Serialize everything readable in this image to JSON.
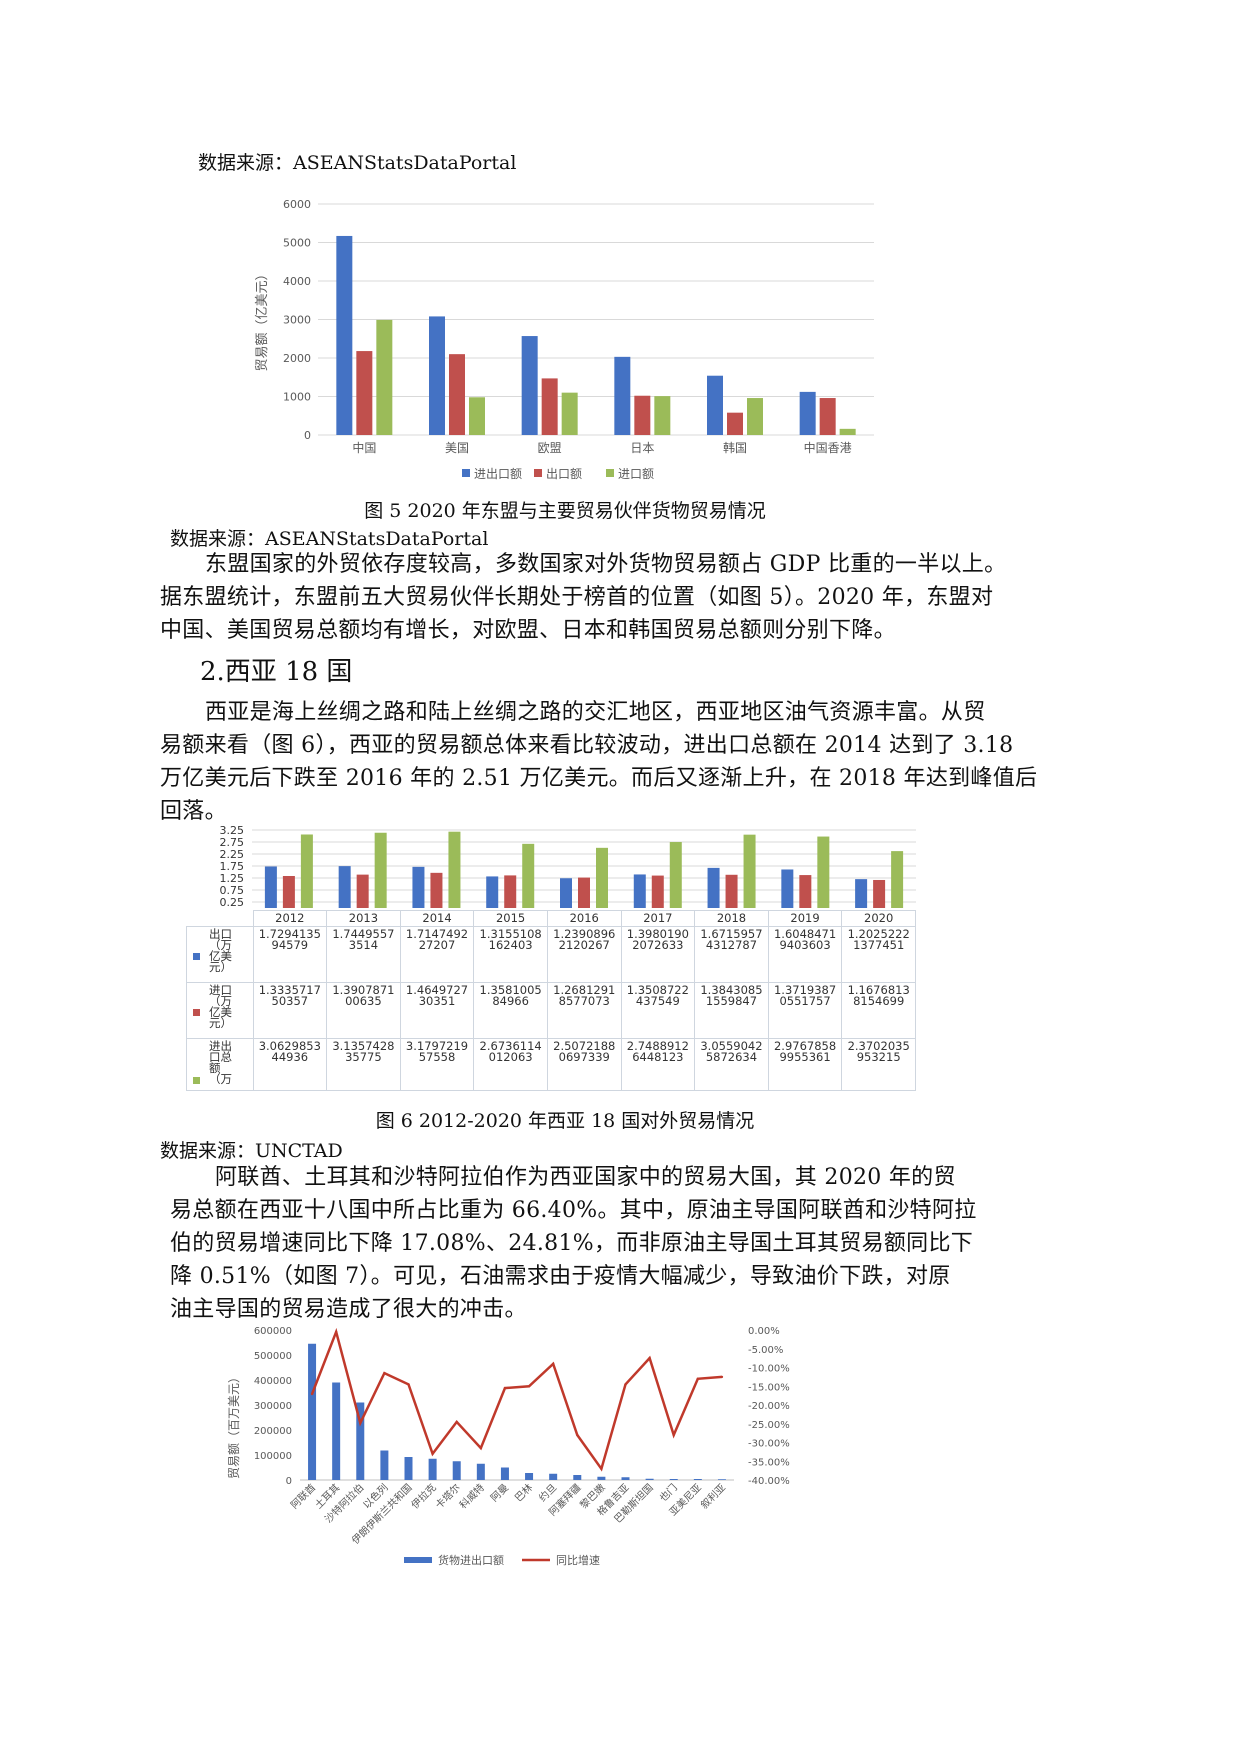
{
  "source1": "数据来源：ASEANStatsDataPortal",
  "chart5": {
    "type": "bar",
    "categories": [
      "中国",
      "美国",
      "欧盟",
      "日本",
      "韩国",
      "中国香港"
    ],
    "ylabel": "贸易额（亿美元）",
    "ylim": [
      0,
      6000
    ],
    "yticks": [
      "0",
      "1000",
      "2000",
      "3000",
      "4000",
      "5000",
      "6000"
    ],
    "legend_position": "bottom",
    "series": [
      {
        "name": "进出口额",
        "color": "#4472c4",
        "values": [
          5170,
          3080,
          2570,
          2030,
          1540,
          1120
        ]
      },
      {
        "name": "出口额",
        "color": "#c0504d",
        "values": [
          2180,
          2100,
          1470,
          1020,
          580,
          960
        ]
      },
      {
        "name": "进口额",
        "color": "#9bbb59",
        "values": [
          2990,
          980,
          1100,
          1010,
          960,
          160
        ]
      }
    ]
  },
  "caption5": "图 5 2020 年东盟与主要贸易伙伴货物贸易情况",
  "source2": "数据来源：ASEANStatsDataPortal",
  "para1": [
    "东盟国家的外贸依存度较高，多数国家对外货物贸易额占 GDP 比重的一半以上。",
    "据东盟统计，东盟前五大贸易伙伴长期处于榜首的位置（如图 5）。2020 年，东盟对",
    "中国、美国贸易总额均有增长，对欧盟、日本和韩国贸易总额则分别下降。"
  ],
  "heading": "2.西亚 18 国",
  "para2": [
    "西亚是海上丝绸之路和陆上丝绸之路的交汇地区，西亚地区油气资源丰富。从贸",
    "易额来看（图 6），西亚的贸易额总体来看比较波动，进出口总额在 2014 达到了 3.18",
    "万亿美元后下跌至 2016 年的 2.51 万亿美元。而后又逐渐上升，在 2018 年达到峰值后",
    "回落。"
  ],
  "chart6": {
    "type": "bar",
    "categories": [
      "2012",
      "2013",
      "2014",
      "2015",
      "2016",
      "2017",
      "2018",
      "2019",
      "2020"
    ],
    "ylim": [
      0,
      3.25
    ],
    "yticks": [
      "0.25",
      "0.75",
      "1.25",
      "1.75",
      "2.25",
      "2.75",
      "3.25"
    ],
    "series": [
      {
        "name": "出口（万亿美元）",
        "color": "#4472c4",
        "values": [
          1.729413594579,
          1.74495573514,
          1.7147492272,
          1.31551081624,
          1.23908962120267,
          1.39801902072633,
          1.67159574312787,
          1.60484719403603,
          1.20252221377451
        ],
        "label_lines": [
          "出口",
          "（万",
          "亿美",
          "元）"
        ],
        "texts": [
          [
            "1.7294135",
            "94579"
          ],
          [
            "1.7449557",
            "3514"
          ],
          [
            "1.7147492",
            "27207"
          ],
          [
            "1.3155108",
            "162403"
          ],
          [
            "1.2390896",
            "2120267"
          ],
          [
            "1.3980190",
            "2072633"
          ],
          [
            "1.6715957",
            "4312787"
          ],
          [
            "1.6048471",
            "9403603"
          ],
          [
            "1.2025222",
            "1377451"
          ]
        ]
      },
      {
        "name": "进口（万亿美元）",
        "color": "#c0504d",
        "values": [
          1.333571750357,
          1.390787100635,
          1.464972730351,
          1.358100584966,
          1.26812918577073,
          1.3508722437549,
          1.38430851559847,
          1.37193870551757,
          1.16768138154699
        ],
        "label_lines": [
          "进口",
          "（万",
          "亿美",
          "元）"
        ],
        "texts": [
          [
            "1.3335717",
            "50357"
          ],
          [
            "1.3907871",
            "00635"
          ],
          [
            "1.4649727",
            "30351"
          ],
          [
            "1.3581005",
            "84966"
          ],
          [
            "1.2681291",
            "8577073"
          ],
          [
            "1.3508722",
            "437549"
          ],
          [
            "1.3843085",
            "1559847"
          ],
          [
            "1.3719387",
            "0551757"
          ],
          [
            "1.1676813",
            "8154699"
          ]
        ]
      },
      {
        "name": "进出口总额（万亿美元）",
        "color": "#9bbb59",
        "values": [
          3.062985344936,
          3.135742835775,
          3.179721957558,
          2.6736114012063,
          2.50721880697339,
          2.74889126448123,
          3.05590425872634,
          2.97678589955361,
          2.3702035953215
        ],
        "label_lines": [
          "进出",
          "口总",
          "额",
          "（万"
        ],
        "texts": [
          [
            "3.0629853",
            "44936"
          ],
          [
            "3.1357428",
            "35775"
          ],
          [
            "3.1797219",
            "57558"
          ],
          [
            "2.6736114",
            "012063"
          ],
          [
            "2.5072188",
            "0697339"
          ],
          [
            "2.7488912",
            "6448123"
          ],
          [
            "3.0559042",
            "5872634"
          ],
          [
            "2.9767858",
            "9955361"
          ],
          [
            "2.3702035",
            "953215"
          ]
        ]
      }
    ]
  },
  "caption6": "图 6 2012-2020 年西亚 18 国对外贸易情况",
  "source3": "数据来源：UNCTAD",
  "para3": [
    "阿联酋、土耳其和沙特阿拉伯作为西亚国家中的贸易大国，其 2020 年的贸",
    "易总额在西亚十八国中所占比重为 66.40%。其中，原油主导国阿联酋和沙特阿拉",
    "伯的贸易增速同比下降 17.08%、24.81%，而非原油主导国土耳其贸易额同比下",
    "降 0.51%（如图 7）。可见，石油需求由于疫情大幅减少，导致油价下跌，对原",
    "油主导国的贸易造成了很大的冲击。"
  ],
  "chart7": {
    "type": "bar+line",
    "categories": [
      "阿联酋",
      "土耳其",
      "沙特阿拉伯",
      "以色列",
      "伊朗伊斯兰共和国",
      "伊拉克",
      "卡塔尔",
      "科威特",
      "阿曼",
      "巴林",
      "约旦",
      "阿塞拜疆",
      "黎巴嫩",
      "格鲁吉亚",
      "巴勒斯坦国",
      "也门",
      "亚美尼亚",
      "叙利亚"
    ],
    "ylabel": "贸易额（百万美元）",
    "ylim": [
      0,
      600000
    ],
    "yticks": [
      "0",
      "100000",
      "200000",
      "300000",
      "400000",
      "500000",
      "600000"
    ],
    "y2lim": [
      -40,
      0
    ],
    "y2ticks": [
      "0.00%",
      "-5.00%",
      "-10.00%",
      "-15.00%",
      "-20.00%",
      "-25.00%",
      "-30.00%",
      "-35.00%",
      "-40.00%"
    ],
    "legend_position": "bottom",
    "series": [
      {
        "name": "货物进出口额",
        "color": "#4472c4",
        "values": [
          545000,
          390000,
          310000,
          118000,
          92000,
          85000,
          75000,
          65000,
          50000,
          28000,
          25000,
          20000,
          13000,
          11000,
          5000,
          4000,
          4000,
          3000
        ]
      },
      {
        "name": "同比增速",
        "color": "#c0392b",
        "axis": "right",
        "values": [
          -17.08,
          -0.51,
          -24.81,
          -11.5,
          -14.5,
          -33,
          -24.5,
          -31.5,
          -15.5,
          -15,
          -9,
          -28,
          -37,
          -14.5,
          -7.5,
          -28,
          -13,
          -12.5
        ]
      }
    ]
  }
}
